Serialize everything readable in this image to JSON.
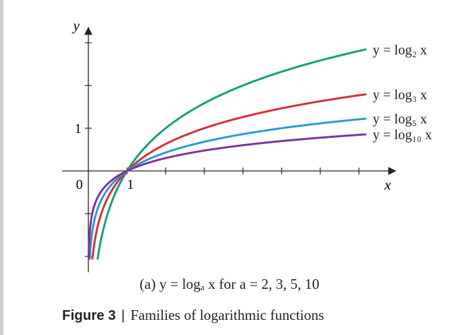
{
  "chart_data": {
    "type": "line",
    "title": "",
    "xlabel": "x",
    "ylabel": "y",
    "x_tick_labels": [
      "0",
      "1"
    ],
    "y_tick_labels": [
      "1"
    ],
    "xlim": [
      0,
      8
    ],
    "ylim": [
      -2.6,
      3.3
    ],
    "grid": false,
    "legend": "labels at line ends, right side",
    "series": [
      {
        "name": "y = log₂ x",
        "base": 2,
        "color": "#16a07a"
      },
      {
        "name": "y = log₃ x",
        "base": 3,
        "color": "#d8313a"
      },
      {
        "name": "y = log₅ x",
        "base": 5,
        "color": "#2b9bd0"
      },
      {
        "name": "y = log₁₀ x",
        "base": 10,
        "color": "#7b3596"
      }
    ],
    "subcaption": {
      "prefix": "(a)",
      "formula": "y = logₐ x for a = 2, 3, 5, 10"
    }
  },
  "figure": {
    "label": "Figure 3",
    "separator": "|",
    "caption": "Families of logarithmic functions"
  }
}
